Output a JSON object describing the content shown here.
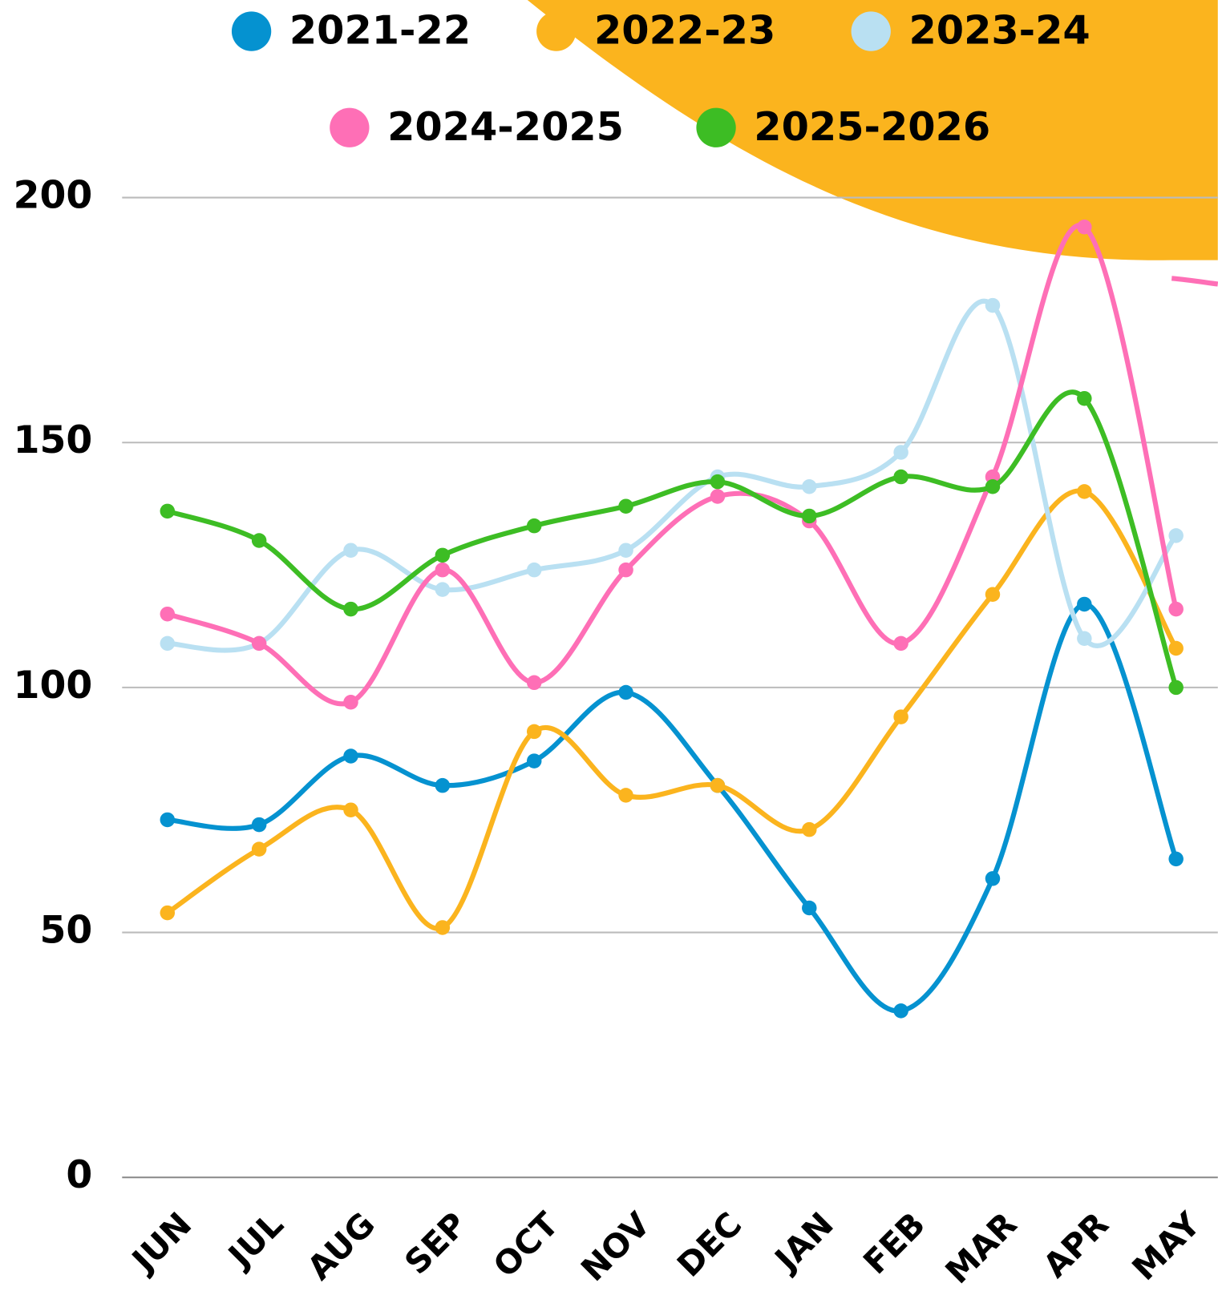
{
  "chart_data": {
    "type": "line",
    "categories": [
      "JUN",
      "JUL",
      "AUG",
      "SEP",
      "OCT",
      "NOV",
      "DEC",
      "JAN",
      "FEB",
      "MAR",
      "APR",
      "MAY"
    ],
    "series": [
      {
        "name": "2021-22",
        "color": "#0592d0",
        "values": [
          73,
          72,
          86,
          80,
          85,
          99,
          80,
          55,
          34,
          61,
          117,
          65
        ]
      },
      {
        "name": "2022-23",
        "color": "#fbb41e",
        "values": [
          54,
          67,
          75,
          51,
          91,
          78,
          80,
          71,
          94,
          119,
          140,
          108
        ]
      },
      {
        "name": "2023-24",
        "color": "#b9e0f2",
        "values": [
          109,
          109,
          128,
          120,
          124,
          128,
          143,
          141,
          148,
          178,
          110,
          131
        ]
      },
      {
        "name": "2024-2025",
        "color": "#fe6fb6",
        "values": [
          115,
          109,
          97,
          124,
          101,
          124,
          139,
          134,
          109,
          143,
          194,
          116
        ]
      },
      {
        "name": "2025-2026",
        "color": "#3dbd24",
        "values": [
          136,
          130,
          116,
          127,
          133,
          137,
          142,
          135,
          143,
          141,
          159,
          100
        ]
      }
    ],
    "ylim": [
      0,
      200
    ],
    "yticks": [
      0,
      50,
      100,
      150,
      200
    ],
    "grid": true
  }
}
